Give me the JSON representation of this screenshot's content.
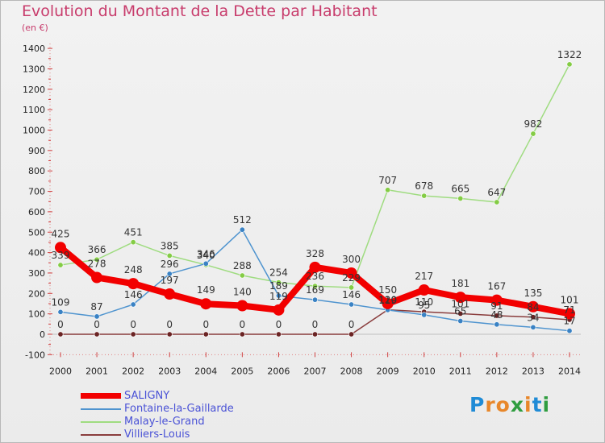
{
  "title": "Evolution du Montant de la Dette par Habitant",
  "unit": "(en €)",
  "brand": {
    "letters": [
      {
        "ch": "P",
        "color": "#1f8bd6"
      },
      {
        "ch": "r",
        "color": "#e8872a"
      },
      {
        "ch": "o",
        "color": "#e8872a"
      },
      {
        "ch": "x",
        "color": "#2f9d3f"
      },
      {
        "ch": "i",
        "color": "#e8872a"
      },
      {
        "ch": "t",
        "color": "#1f8bd6"
      },
      {
        "ch": "i",
        "color": "#2f9d3f"
      }
    ]
  },
  "chart_data": {
    "type": "line",
    "x": [
      "2000",
      "2001",
      "2002",
      "2003",
      "2004",
      "2005",
      "2006",
      "2007",
      "2008",
      "2009",
      "2010",
      "2011",
      "2012",
      "2013",
      "2014"
    ],
    "ylim": [
      -100,
      1400
    ],
    "yticks": [
      -100,
      0,
      100,
      200,
      300,
      400,
      500,
      600,
      700,
      800,
      900,
      1000,
      1100,
      1200,
      1300,
      1400
    ],
    "grid": false,
    "legend_placement": "bottom-left",
    "series": [
      {
        "name": "SALIGNY",
        "color": "#f20000",
        "style": "thick",
        "values": [
          425,
          278,
          248,
          197,
          149,
          140,
          119,
          328,
          300,
          150,
          217,
          181,
          167,
          135,
          101
        ],
        "labels": [
          "425",
          "278",
          "248",
          "197",
          "149",
          "140",
          "119",
          "328",
          "300",
          "150",
          "217",
          "181",
          "167",
          "135",
          "101"
        ]
      },
      {
        "name": "Fontaine-la-Gaillarde",
        "color": "#4f94cf",
        "marker": "#3a82c4",
        "values": [
          109,
          87,
          146,
          296,
          346,
          512,
          189,
          169,
          146,
          119,
          95,
          65,
          48,
          34,
          17
        ],
        "labels": [
          "109",
          "87",
          "146",
          "296",
          "346",
          "512",
          "189",
          "169",
          "146",
          "119",
          "95",
          "65",
          "48",
          "34",
          "17"
        ]
      },
      {
        "name": "Malay-le-Grand",
        "color": "#9fdc80",
        "marker": "#84cc45",
        "values": [
          339,
          366,
          451,
          385,
          340,
          288,
          254,
          236,
          229,
          707,
          678,
          665,
          647,
          982,
          1322
        ],
        "labels": [
          "339",
          "366",
          "451",
          "385",
          "340",
          "288",
          "254",
          "236",
          "229",
          "707",
          "678",
          "665",
          "647",
          "982",
          "1322"
        ]
      },
      {
        "name": "Villiers-Louis",
        "color": "#8a3d3d",
        "marker": "#6b2424",
        "values": [
          0,
          0,
          0,
          0,
          0,
          0,
          0,
          0,
          0,
          120,
          110,
          101,
          91,
          84,
          71
        ],
        "labels": [
          "0",
          "0",
          "0",
          "0",
          "0",
          "0",
          "0",
          "0",
          "0",
          "120",
          "110",
          "101",
          "91",
          "84",
          "71"
        ]
      }
    ]
  }
}
